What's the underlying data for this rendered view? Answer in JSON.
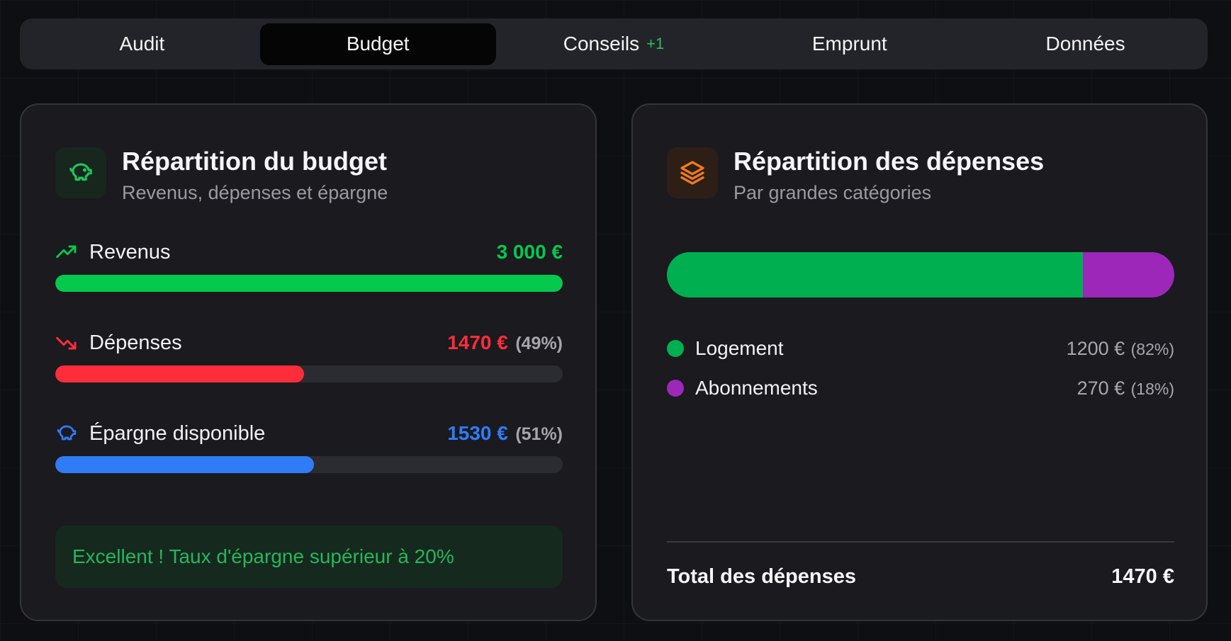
{
  "tabs": [
    {
      "label": "Audit",
      "badge": ""
    },
    {
      "label": "Budget",
      "badge": ""
    },
    {
      "label": "Conseils",
      "badge": "+1"
    },
    {
      "label": "Emprunt",
      "badge": ""
    },
    {
      "label": "Données",
      "badge": ""
    }
  ],
  "active_tab": "Budget",
  "budget_card": {
    "title": "Répartition du budget",
    "subtitle": "Revenus, dépenses et épargne",
    "icon": "piggy-bank-icon",
    "rows": [
      {
        "label": "Revenus",
        "icon": "trending-up-icon",
        "value": "3 000 €",
        "pct": "",
        "fill": 1.0,
        "color": "#05c94d"
      },
      {
        "label": "Dépenses",
        "icon": "trending-down-icon",
        "value": "1470 €",
        "pct": "(49%)",
        "fill": 0.49,
        "color": "#ff2d3a"
      },
      {
        "label": "Épargne disponible",
        "icon": "piggy-bank-icon",
        "value": "1530 €",
        "pct": "(51%)",
        "fill": 0.51,
        "color": "#2f7cf6"
      }
    ],
    "notice": "Excellent ! Taux d'épargne supérieur à 20%"
  },
  "expense_card": {
    "title": "Répartition des dépenses",
    "subtitle": "Par grandes catégories",
    "icon": "layers-icon",
    "categories": [
      {
        "label": "Logement",
        "value": "1200 €",
        "pct": "(82%)",
        "share": 0.82,
        "color": "#00b050"
      },
      {
        "label": "Abonnements",
        "value": "270 €",
        "pct": "(18%)",
        "share": 0.18,
        "color": "#9c27b8"
      }
    ],
    "total_label": "Total des dépenses",
    "total_value": "1470 €"
  },
  "colors": {
    "positive": "#05c94d",
    "negative": "#ff2d3a",
    "savings": "#2f7cf6",
    "accent_orange": "#f07a1e"
  }
}
